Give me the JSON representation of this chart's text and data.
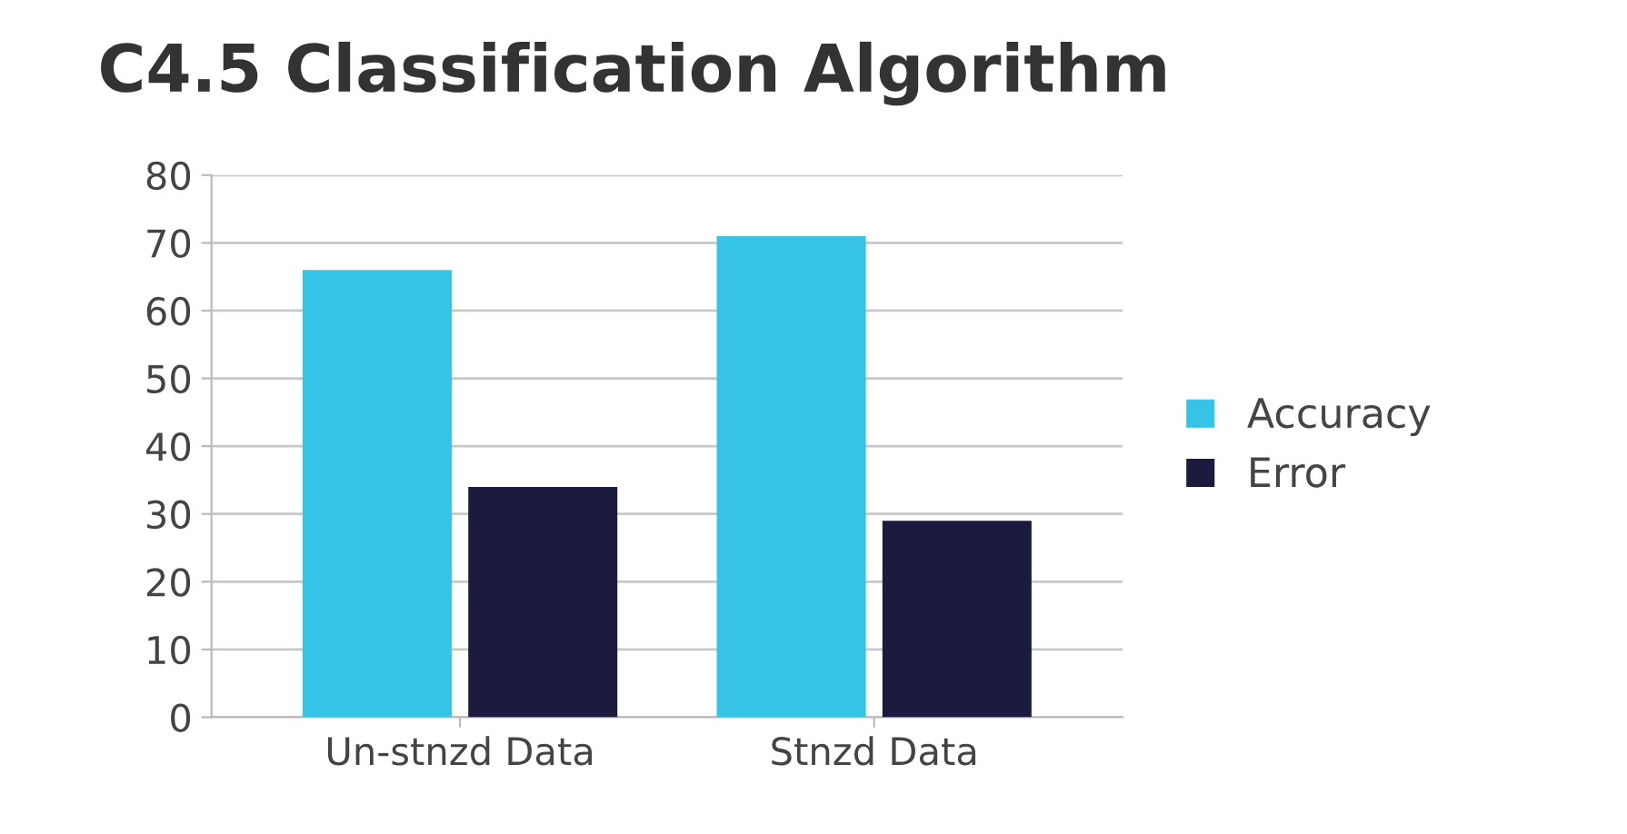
{
  "chart_data": {
    "type": "bar",
    "title": "C4.5 Classification Algorithm",
    "categories": [
      "Un-stnzd Data",
      "Stnzd Data"
    ],
    "series": [
      {
        "name": "Accuracy",
        "color": "#35c3e6",
        "values": [
          66,
          71
        ]
      },
      {
        "name": "Error",
        "color": "#1b1b40",
        "values": [
          34,
          29
        ]
      }
    ],
    "ylim": [
      0,
      80
    ],
    "yticks": [
      0,
      10,
      20,
      30,
      40,
      50,
      60,
      70,
      80
    ],
    "grid": "y",
    "legend": "right"
  }
}
